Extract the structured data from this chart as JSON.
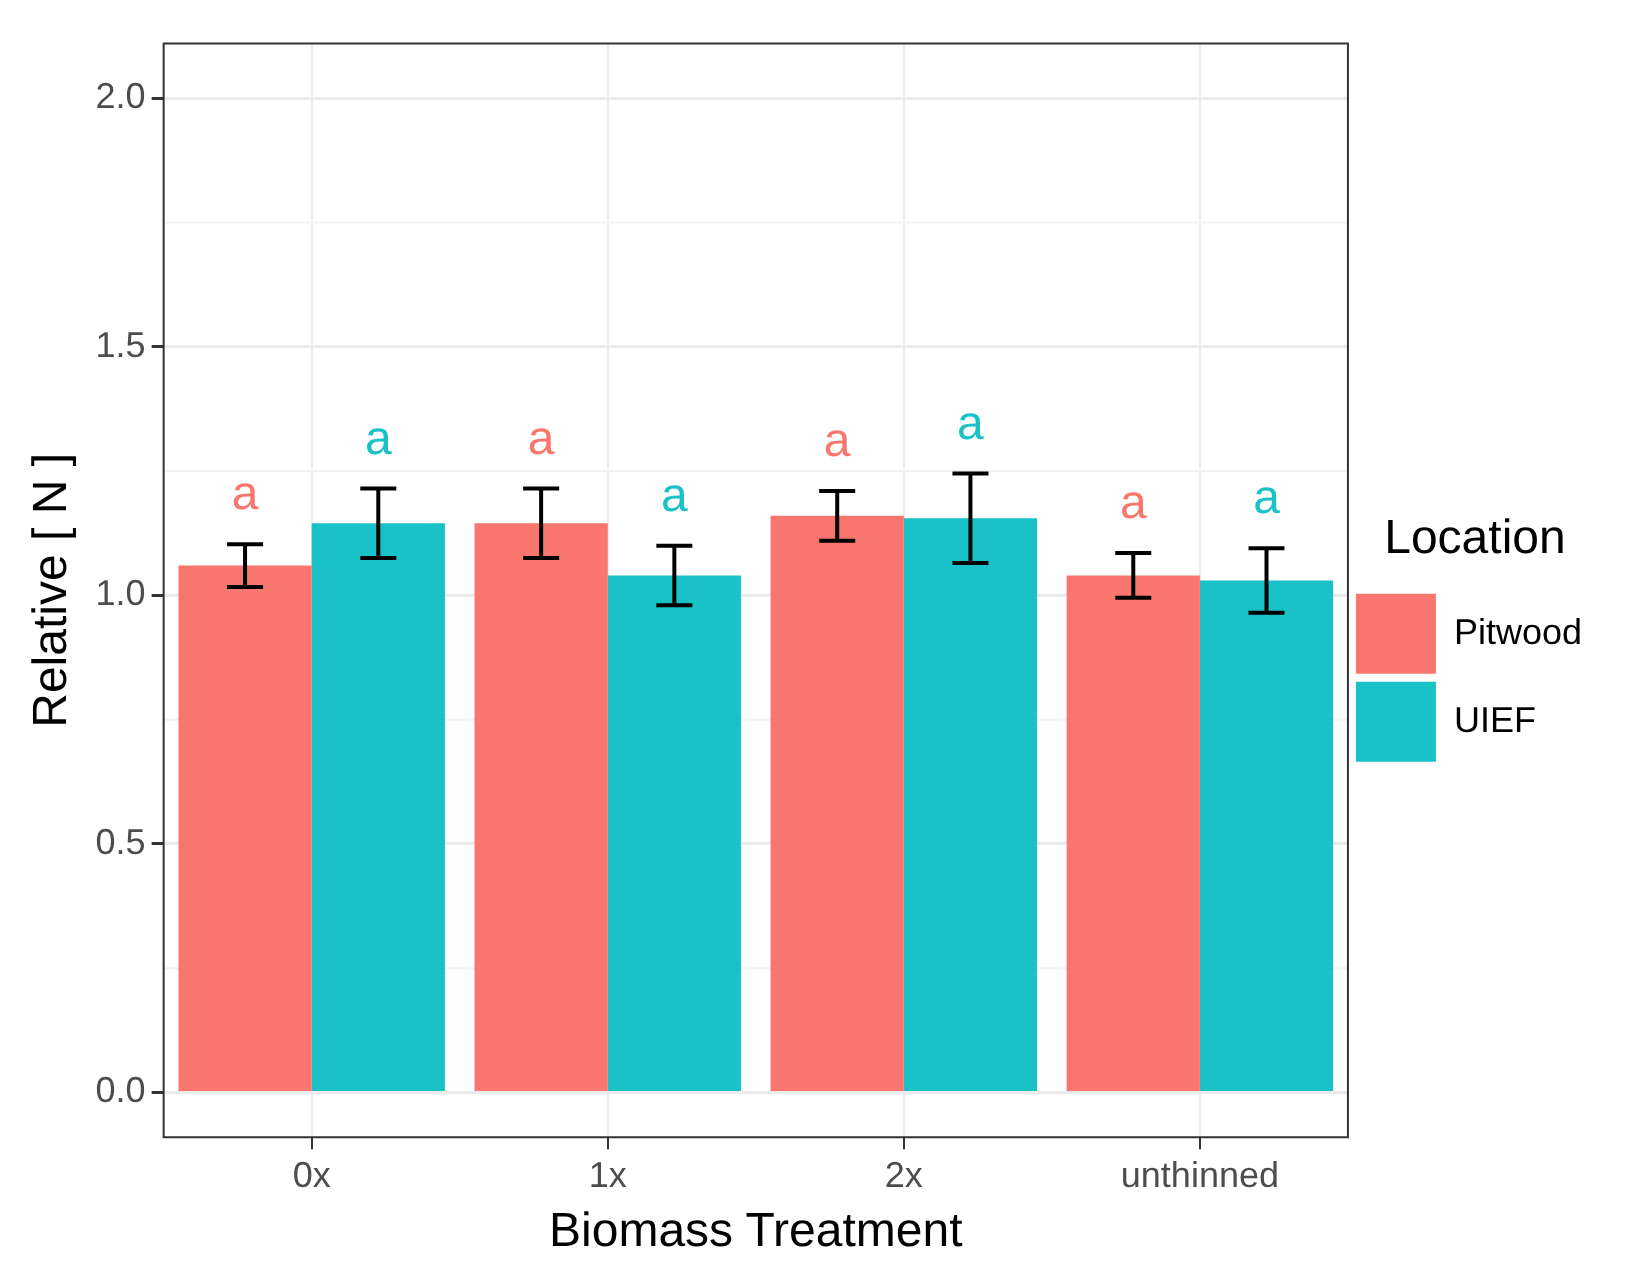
{
  "chart_data": {
    "type": "bar",
    "xlabel": "Biomass Treatment",
    "ylabel": "Relative [ N ]",
    "legend_title": "Location",
    "legend": "right",
    "grid": true,
    "categories": [
      "0x",
      "1x",
      "2x",
      "unthinned"
    ],
    "series": [
      {
        "name": "Pitwood",
        "color": "#f8766d",
        "values": [
          1.06,
          1.145,
          1.16,
          1.04
        ],
        "errors": [
          0.043,
          0.07,
          0.05,
          0.045
        ],
        "value_labels": [
          "a",
          "a",
          "a",
          "a"
        ]
      },
      {
        "name": "UIEF",
        "color": "#1ac1c6",
        "values": [
          1.145,
          1.04,
          1.155,
          1.03
        ],
        "errors": [
          0.07,
          0.06,
          0.09,
          0.065
        ],
        "value_labels": [
          "a",
          "a",
          "a",
          "a"
        ]
      }
    ],
    "ylim": [
      -0.09,
      2.11
    ],
    "yticks": [
      {
        "value": 0,
        "label": "0.0"
      },
      {
        "value": 0.5,
        "label": "0.5"
      },
      {
        "value": 1,
        "label": "1.0"
      },
      {
        "value": 1.5,
        "label": "1.5"
      },
      {
        "value": 2,
        "label": "2.0"
      }
    ]
  }
}
